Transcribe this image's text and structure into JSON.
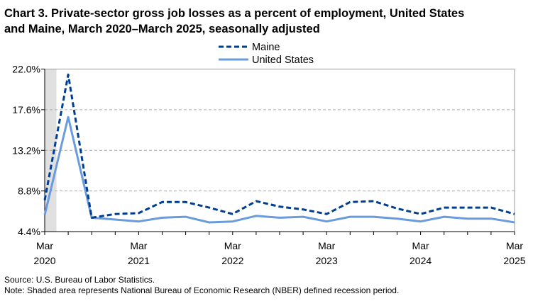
{
  "chart_data": {
    "type": "line",
    "title_line1": "Chart 3. Private-sector gross job losses as a percent of employment, United States",
    "title_line2": "and Maine, March 2020–March 2025, seasonally adjusted",
    "x": [
      "Mar 2020",
      "Jun 2020",
      "Sep 2020",
      "Dec 2020",
      "Mar 2021",
      "Jun 2021",
      "Sep 2021",
      "Dec 2021",
      "Mar 2022",
      "Jun 2022",
      "Sep 2022",
      "Dec 2022",
      "Mar 2023",
      "Jun 2023",
      "Sep 2023",
      "Dec 2023",
      "Mar 2024",
      "Jun 2024",
      "Sep 2024",
      "Dec 2024",
      "Mar 2025"
    ],
    "x_tick_labels": [
      {
        "month": "Mar",
        "year": "2020",
        "index": 0
      },
      {
        "month": "Mar",
        "year": "2021",
        "index": 4
      },
      {
        "month": "Mar",
        "year": "2022",
        "index": 8
      },
      {
        "month": "Mar",
        "year": "2023",
        "index": 12
      },
      {
        "month": "Mar",
        "year": "2024",
        "index": 16
      },
      {
        "month": "Mar",
        "year": "2025",
        "index": 20
      }
    ],
    "y_ticks": [
      "4.4%",
      "8.8%",
      "13.2%",
      "17.6%",
      "22.0%"
    ],
    "ylim": [
      4.4,
      22.0
    ],
    "grid": "horizontal dashed",
    "legend_placement": "top-center",
    "recession_shading": {
      "from_index": 0,
      "to_index": 0.5,
      "color": "#e0e0e0"
    },
    "series": [
      {
        "name": "Maine",
        "style": "dashed",
        "color": "#003f8f",
        "values": [
          7.8,
          21.4,
          5.9,
          6.3,
          6.4,
          7.6,
          7.6,
          7.0,
          6.3,
          7.7,
          7.1,
          6.8,
          6.3,
          7.6,
          7.7,
          6.9,
          6.3,
          7.0,
          7.0,
          7.0,
          6.3
        ]
      },
      {
        "name": "United States",
        "style": "solid",
        "color": "#6a9bdc",
        "values": [
          6.2,
          16.8,
          5.9,
          5.7,
          5.5,
          5.9,
          6.0,
          5.4,
          5.5,
          6.1,
          5.9,
          6.0,
          5.5,
          6.0,
          6.0,
          5.8,
          5.5,
          6.0,
          5.8,
          5.8,
          5.4
        ]
      }
    ]
  },
  "footer": {
    "source": "Source: U.S. Bureau of Labor Statistics.",
    "note": "Note: Shaded area represents National Bureau of Economic Research (NBER) defined recession period."
  }
}
